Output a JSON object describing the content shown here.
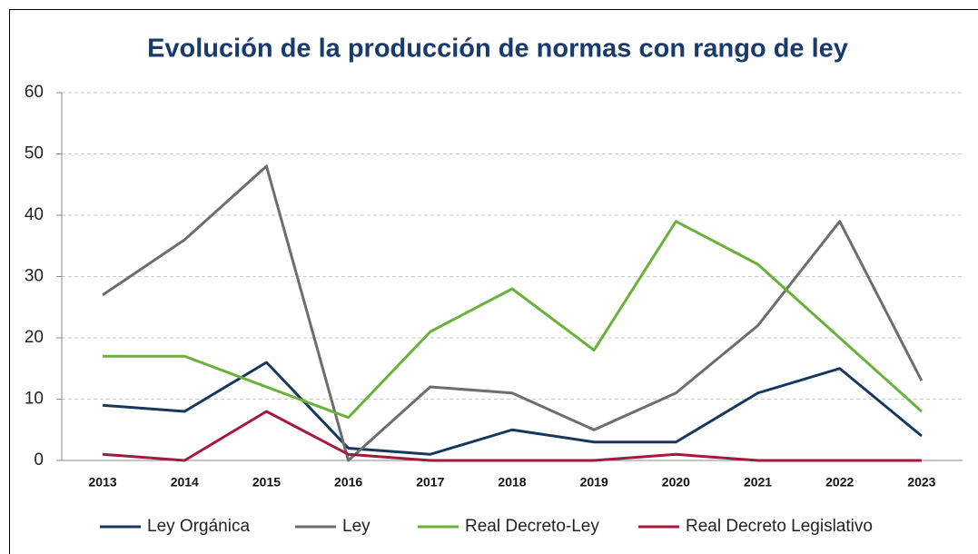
{
  "chart_data": {
    "type": "line",
    "title": "Evolución de la producción de normas con rango de ley",
    "categories": [
      "2013",
      "2014",
      "2015",
      "2016",
      "2017",
      "2018",
      "2019",
      "2020",
      "2021",
      "2022",
      "2023"
    ],
    "series": [
      {
        "name": "Ley Orgánica",
        "color": "#17375e",
        "values": [
          9,
          8,
          16,
          2,
          1,
          5,
          3,
          3,
          11,
          15,
          4
        ]
      },
      {
        "name": "Ley",
        "color": "#6d6d6d",
        "values": [
          27,
          36,
          48,
          0,
          12,
          11,
          5,
          11,
          22,
          39,
          13
        ]
      },
      {
        "name": "Real Decreto-Ley",
        "color": "#6ab13a",
        "values": [
          17,
          17,
          12,
          7,
          21,
          28,
          18,
          39,
          32,
          20,
          8
        ]
      },
      {
        "name": "Real Decreto Legislativo",
        "color": "#a6193d",
        "values": [
          1,
          0,
          8,
          1,
          0,
          0,
          0,
          1,
          0,
          0,
          0
        ]
      }
    ],
    "ylim": [
      0,
      60
    ],
    "yticks": [
      0,
      10,
      20,
      30,
      40,
      50,
      60
    ],
    "grid": true,
    "legend": "bottom"
  }
}
